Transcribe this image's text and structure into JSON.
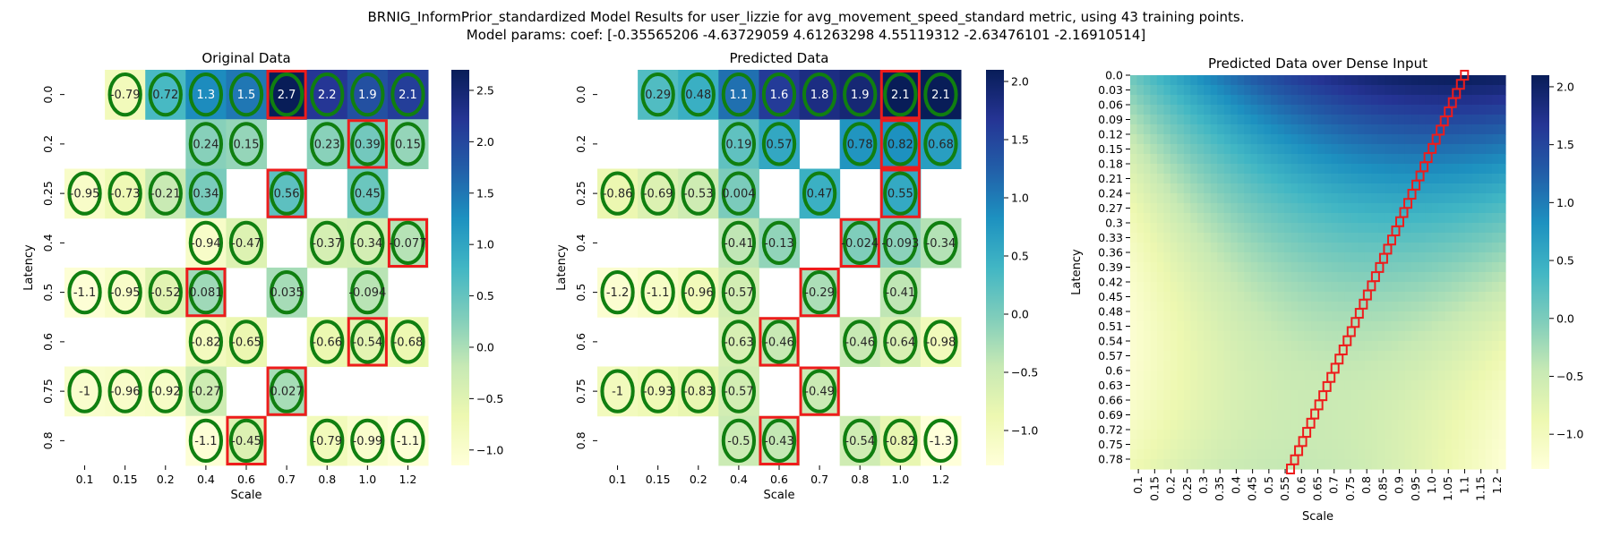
{
  "suptitle": [
    "BRNIG_InformPrior_standardized Model Results for user_lizzie for avg_movement_speed_standard metric, using 43 training points.",
    "Model params: coef: [-0.35565206 -4.63729059  4.61263298  4.55119312 -2.63476101 -2.16910514]"
  ],
  "colors": {
    "colormap": "YlGnBu",
    "circle": "#107f10",
    "highlight": "#ee1c1c",
    "text_dark": "#262626",
    "text_light": "#ffffff"
  },
  "chart_data": [
    {
      "type": "heatmap",
      "title": "Original Data",
      "xlabel": "Scale",
      "ylabel": "Latency",
      "x": [
        "0.1",
        "0.15",
        "0.2",
        "0.4",
        "0.6",
        "0.7",
        "0.8",
        "1.0",
        "1.2"
      ],
      "y": [
        "0.0",
        "0.2",
        "0.25",
        "0.4",
        "0.5",
        "0.6",
        "0.75",
        "0.8"
      ],
      "labels": [
        [
          "",
          "-0.79",
          "0.72",
          "1.3",
          "1.5",
          "2.7",
          "2.2",
          "1.9",
          "2.1"
        ],
        [
          "",
          "",
          "",
          "0.24",
          "0.15",
          "",
          "0.23",
          "0.39",
          "0.15"
        ],
        [
          "-0.95",
          "-0.73",
          "-0.21",
          "0.34",
          "",
          "0.56",
          "",
          "0.45",
          ""
        ],
        [
          "",
          "",
          "",
          "-0.94",
          "-0.47",
          "",
          "-0.37",
          "-0.34",
          "-0.077"
        ],
        [
          "-1.1",
          "-0.95",
          "-0.52",
          "0.081",
          "",
          "0.035",
          "",
          "-0.094",
          ""
        ],
        [
          "",
          "",
          "",
          "-0.82",
          "-0.65",
          "",
          "-0.66",
          "-0.54",
          "-0.68"
        ],
        [
          "-1",
          "-0.96",
          "-0.92",
          "-0.27",
          "",
          "0.027",
          "",
          "",
          ""
        ],
        [
          "",
          "",
          "",
          "-1.1",
          "-0.45",
          "",
          "-0.79",
          "-0.99",
          "-1.1"
        ]
      ],
      "circled": [
        [
          0,
          1
        ],
        [
          0,
          2
        ],
        [
          0,
          3
        ],
        [
          0,
          4
        ],
        [
          0,
          5
        ],
        [
          0,
          6
        ],
        [
          0,
          7
        ],
        [
          0,
          8
        ],
        [
          1,
          3
        ],
        [
          1,
          4
        ],
        [
          1,
          6
        ],
        [
          1,
          7
        ],
        [
          1,
          8
        ],
        [
          2,
          0
        ],
        [
          2,
          1
        ],
        [
          2,
          2
        ],
        [
          2,
          3
        ],
        [
          2,
          5
        ],
        [
          2,
          7
        ],
        [
          3,
          3
        ],
        [
          3,
          4
        ],
        [
          3,
          6
        ],
        [
          3,
          7
        ],
        [
          3,
          8
        ],
        [
          4,
          0
        ],
        [
          4,
          1
        ],
        [
          4,
          2
        ],
        [
          4,
          3
        ],
        [
          4,
          5
        ],
        [
          4,
          7
        ],
        [
          5,
          3
        ],
        [
          5,
          4
        ],
        [
          5,
          6
        ],
        [
          5,
          7
        ],
        [
          5,
          8
        ],
        [
          6,
          0
        ],
        [
          6,
          1
        ],
        [
          6,
          2
        ],
        [
          6,
          3
        ],
        [
          6,
          5
        ],
        [
          7,
          3
        ],
        [
          7,
          4
        ],
        [
          7,
          6
        ],
        [
          7,
          7
        ],
        [
          7,
          8
        ]
      ],
      "highlighted": [
        [
          0,
          5
        ],
        [
          1,
          7
        ],
        [
          2,
          5
        ],
        [
          3,
          8
        ],
        [
          4,
          3
        ],
        [
          5,
          7
        ],
        [
          6,
          5
        ],
        [
          7,
          4
        ]
      ],
      "colorbar": {
        "min": -1.15,
        "max": 2.7,
        "ticks": [
          "2.5",
          "2.0",
          "1.5",
          "1.0",
          "0.5",
          "0.0",
          "−0.5",
          "−1.0"
        ],
        "tick_values": [
          2.5,
          2.0,
          1.5,
          1.0,
          0.5,
          0.0,
          -0.5,
          -1.0
        ]
      }
    },
    {
      "type": "heatmap",
      "title": "Predicted Data",
      "xlabel": "Scale",
      "ylabel": "Latency",
      "x": [
        "0.1",
        "0.15",
        "0.2",
        "0.4",
        "0.6",
        "0.7",
        "0.8",
        "1.0",
        "1.2"
      ],
      "y": [
        "0.0",
        "0.2",
        "0.25",
        "0.4",
        "0.5",
        "0.6",
        "0.75",
        "0.8"
      ],
      "labels": [
        [
          "",
          "0.29",
          "0.48",
          "1.1",
          "1.6",
          "1.8",
          "1.9",
          "2.1",
          "2.1"
        ],
        [
          "",
          "",
          "",
          "0.19",
          "0.57",
          "",
          "0.78",
          "0.82",
          "0.68"
        ],
        [
          "-0.86",
          "-0.69",
          "-0.53",
          "0.004",
          "",
          "0.47",
          "",
          "0.55",
          ""
        ],
        [
          "",
          "",
          "",
          "-0.41",
          "-0.13",
          "",
          "-0.024",
          "-0.093",
          "-0.34"
        ],
        [
          "-1.2",
          "-1.1",
          "-0.96",
          "-0.57",
          "",
          "-0.29",
          "",
          "-0.41",
          ""
        ],
        [
          "",
          "",
          "",
          "-0.63",
          "-0.46",
          "",
          "-0.46",
          "-0.64",
          "-0.98"
        ],
        [
          "-1",
          "-0.93",
          "-0.83",
          "-0.57",
          "",
          "-0.49",
          "",
          "",
          ""
        ],
        [
          "",
          "",
          "",
          "-0.5",
          "-0.43",
          "",
          "-0.54",
          "-0.82",
          "-1.3"
        ]
      ],
      "circled": [
        [
          0,
          1
        ],
        [
          0,
          2
        ],
        [
          0,
          3
        ],
        [
          0,
          4
        ],
        [
          0,
          5
        ],
        [
          0,
          6
        ],
        [
          0,
          7
        ],
        [
          0,
          8
        ],
        [
          1,
          3
        ],
        [
          1,
          4
        ],
        [
          1,
          6
        ],
        [
          1,
          7
        ],
        [
          1,
          8
        ],
        [
          2,
          0
        ],
        [
          2,
          1
        ],
        [
          2,
          2
        ],
        [
          2,
          3
        ],
        [
          2,
          5
        ],
        [
          2,
          7
        ],
        [
          3,
          3
        ],
        [
          3,
          4
        ],
        [
          3,
          6
        ],
        [
          3,
          7
        ],
        [
          3,
          8
        ],
        [
          4,
          0
        ],
        [
          4,
          1
        ],
        [
          4,
          2
        ],
        [
          4,
          3
        ],
        [
          4,
          5
        ],
        [
          4,
          7
        ],
        [
          5,
          3
        ],
        [
          5,
          4
        ],
        [
          5,
          6
        ],
        [
          5,
          7
        ],
        [
          5,
          8
        ],
        [
          6,
          0
        ],
        [
          6,
          1
        ],
        [
          6,
          2
        ],
        [
          6,
          3
        ],
        [
          6,
          5
        ],
        [
          7,
          3
        ],
        [
          7,
          4
        ],
        [
          7,
          6
        ],
        [
          7,
          7
        ],
        [
          7,
          8
        ]
      ],
      "highlighted": [
        [
          0,
          7
        ],
        [
          1,
          7
        ],
        [
          2,
          7
        ],
        [
          3,
          6
        ],
        [
          4,
          5
        ],
        [
          5,
          4
        ],
        [
          6,
          5
        ],
        [
          7,
          4
        ]
      ],
      "colorbar": {
        "min": -1.3,
        "max": 2.1,
        "ticks": [
          "2.0",
          "1.5",
          "1.0",
          "0.5",
          "0.0",
          "−0.5",
          "−1.0"
        ],
        "tick_values": [
          2.0,
          1.5,
          1.0,
          0.5,
          0.0,
          -0.5,
          -1.0
        ]
      }
    },
    {
      "type": "heatmap",
      "title": "Predicted Data over Dense Input",
      "xlabel": "Scale",
      "ylabel": "Latency",
      "x": [
        "0.1",
        "0.15",
        "0.2",
        "0.25",
        "0.3",
        "0.35",
        "0.4",
        "0.45",
        "0.5",
        "0.55",
        "0.6",
        "0.65",
        "0.7",
        "0.75",
        "0.8",
        "0.85",
        "0.9",
        "0.95",
        "1.0",
        "1.05",
        "1.1",
        "1.15",
        "1.2"
      ],
      "y": [
        "0.0",
        "0.03",
        "0.06",
        "0.09",
        "0.12",
        "0.15",
        "0.18",
        "0.21",
        "0.24",
        "0.27",
        "0.3",
        "0.33",
        "0.36",
        "0.39",
        "0.42",
        "0.45",
        "0.48",
        "0.51",
        "0.54",
        "0.57",
        "0.6",
        "0.63",
        "0.66",
        "0.69",
        "0.72",
        "0.75",
        "0.78"
      ],
      "x_range": [
        0.1,
        1.2
      ],
      "y_range": [
        0.0,
        0.8
      ],
      "ridge": {
        "latency": [
          0.0,
          0.8
        ],
        "scale": [
          1.08,
          0.57
        ]
      },
      "model_coef": [
        -0.35565206,
        -4.63729059,
        4.61263298,
        4.55119312,
        -2.63476101,
        -2.16910514
      ],
      "colorbar": {
        "min": -1.3,
        "max": 2.1,
        "ticks": [
          "2.0",
          "1.5",
          "1.0",
          "0.5",
          "0.0",
          "−0.5",
          "−1.0"
        ],
        "tick_values": [
          2.0,
          1.5,
          1.0,
          0.5,
          0.0,
          -0.5,
          -1.0
        ]
      }
    }
  ]
}
